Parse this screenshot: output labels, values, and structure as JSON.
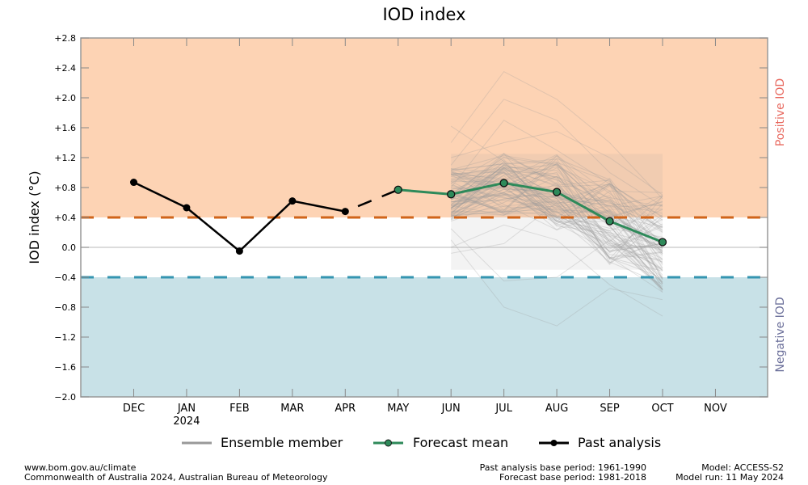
{
  "chart_data": {
    "type": "line",
    "title": "IOD index",
    "xlabel": "",
    "ylabel": "IOD index (°C)",
    "ylim": [
      -2.0,
      2.8
    ],
    "yticks": [
      2.8,
      2.4,
      2.0,
      1.6,
      1.2,
      0.8,
      0.4,
      0.0,
      -0.4,
      -0.8,
      -1.2,
      -1.6,
      -2.0
    ],
    "ytick_labels": [
      "+2.8",
      "+2.4",
      "+2.0",
      "+1.6",
      "+1.2",
      "+0.8",
      "+0.4",
      "0.0",
      "−0.4",
      "−0.8",
      "−1.2",
      "−1.6",
      "−2.0"
    ],
    "categories": [
      "DEC",
      "JAN",
      "FEB",
      "MAR",
      "APR",
      "MAY",
      "JUN",
      "JUL",
      "AUG",
      "SEP",
      "OCT",
      "NOV"
    ],
    "year_label": {
      "category": "JAN",
      "text": "2024"
    },
    "thresholds": {
      "positive": 0.4,
      "negative": -0.4,
      "positive_color": "#d0641a",
      "negative_color": "#3495b0",
      "positive_fill": "#fdd3b4",
      "negative_fill": "#c8e1e7"
    },
    "side_labels": {
      "positive": {
        "text": "Positive IOD",
        "color": "#e8695f"
      },
      "negative": {
        "text": "Negative IOD",
        "color": "#6b6f9a"
      }
    },
    "series": [
      {
        "name": "Past analysis",
        "color": "#000000",
        "categories": [
          "DEC",
          "JAN",
          "FEB",
          "MAR",
          "APR"
        ],
        "values": [
          0.87,
          0.53,
          -0.05,
          0.62,
          0.48
        ]
      },
      {
        "name": "Forecast mean",
        "color": "#2e8a5a",
        "categories": [
          "MAY",
          "JUN",
          "JUL",
          "AUG",
          "SEP",
          "OCT"
        ],
        "values": [
          0.77,
          0.71,
          0.86,
          0.74,
          0.35,
          0.07
        ]
      },
      {
        "name": "Ensemble member",
        "color": "#999999",
        "categories": [
          "JUN",
          "JUL",
          "AUG",
          "SEP",
          "OCT"
        ],
        "note": "approx. 99 ensemble member traces spanning roughly -1.05 to +2.35",
        "envelope": {
          "max": [
            1.62,
            2.35,
            1.98,
            1.4,
            0.7
          ],
          "min": [
            -0.1,
            -0.8,
            -1.05,
            -0.58,
            -0.92
          ]
        },
        "sample_values": [
          [
            1.62,
            1.15,
            0.9,
            0.6,
            0.2
          ],
          [
            1.4,
            2.35,
            1.98,
            1.4,
            0.65
          ],
          [
            1.1,
            1.98,
            1.7,
            1.0,
            0.55
          ],
          [
            0.8,
            1.7,
            1.3,
            0.85,
            0.4
          ],
          [
            1.2,
            1.4,
            1.55,
            1.2,
            0.7
          ],
          [
            0.25,
            -0.45,
            -0.4,
            0.1,
            -0.3
          ],
          [
            0.1,
            -0.8,
            -1.05,
            -0.55,
            -0.7
          ],
          [
            0.0,
            0.3,
            0.1,
            -0.5,
            -0.92
          ],
          [
            0.5,
            0.9,
            0.4,
            0.1,
            -0.4
          ],
          [
            0.7,
            1.2,
            1.1,
            0.5,
            0.1
          ],
          [
            -0.08,
            0.05,
            0.6,
            0.2,
            -0.2
          ],
          [
            0.35,
            0.6,
            0.95,
            0.3,
            -0.6
          ]
        ]
      }
    ],
    "legend": {
      "placement": "bottom",
      "entries": [
        {
          "label": "Ensemble member",
          "color": "#999999",
          "marker": "none"
        },
        {
          "label": "Forecast mean",
          "color": "#2e8a5a",
          "marker": "circle"
        },
        {
          "label": "Past analysis",
          "color": "#000000",
          "marker": "circle"
        }
      ]
    },
    "grid": false
  },
  "footer": {
    "left_line1": "www.bom.gov.au/climate",
    "left_line2": "Commonwealth of Australia 2024, Australian Bureau of Meteorology",
    "mid_line1": "Past analysis base period: 1961-1990",
    "mid_line2": "Forecast base period: 1981-2018",
    "right_line1": "Model: ACCESS-S2",
    "right_line2": "Model run: 11 May 2024"
  }
}
